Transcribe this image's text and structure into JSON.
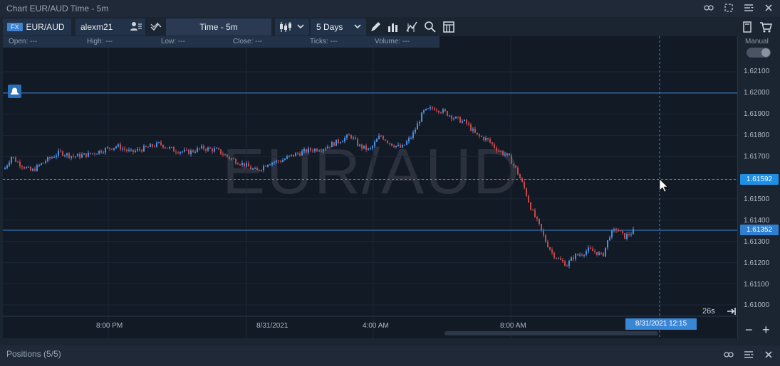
{
  "window": {
    "title": "Chart EUR/AUD Time - 5m"
  },
  "toolbar": {
    "fx_badge": "FX",
    "symbol": "EUR/AUD",
    "account": "alexm21",
    "timeframe": "Time - 5m",
    "period": "5 Days"
  },
  "ohlc": {
    "open_label": "Open:",
    "open_value": "---",
    "high_label": "High:",
    "high_value": "---",
    "low_label": "Low:",
    "low_value": "---",
    "close_label": "Close:",
    "close_value": "---",
    "ticks_label": "Ticks:",
    "ticks_value": "---",
    "volume_label": "Volume:",
    "volume_value": "---"
  },
  "watermark": "EUR/AUD",
  "right_panel": {
    "manual_label": "Manual"
  },
  "y_axis": {
    "ticks": [
      "1.62100",
      "1.62000",
      "1.61900",
      "1.61800",
      "1.61700",
      "1.61592",
      "1.61500",
      "1.61400",
      "1.61352",
      "1.61300",
      "1.61200",
      "1.61100",
      "1.61000"
    ],
    "crosshair_price": "1.61592",
    "last_price": "1.61352",
    "crosshair_color": "#1e8fe3",
    "last_price_color": "#2f7fd0"
  },
  "x_axis": {
    "labels": [
      "8:00 PM",
      "8/31/2021",
      "4:00 AM",
      "8:00 AM"
    ],
    "crosshair_date": "8/31/2021 12:15"
  },
  "countdown": "26s",
  "zoom": {
    "minus": "−",
    "plus": "+"
  },
  "positions": {
    "title": "Positions (5/5)"
  },
  "colors": {
    "up": "#4a90e2",
    "down": "#c24a4a",
    "accent": "#3a86d6"
  }
}
